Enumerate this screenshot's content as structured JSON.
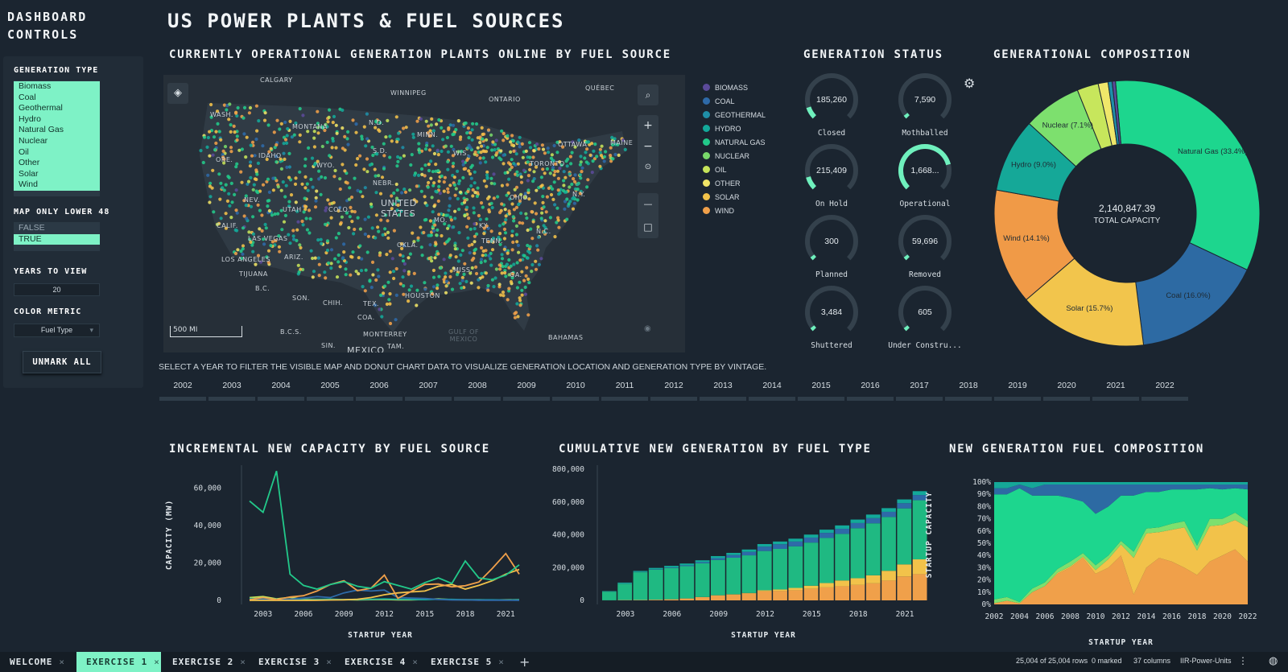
{
  "page_title": "US POWER PLANTS & FUEL SOURCES",
  "sidebar": {
    "title_line1": "DASHBOARD",
    "title_line2": "CONTROLS",
    "generation_type_label": "GENERATION TYPE",
    "generation_types": [
      "Biomass",
      "Coal",
      "Geothermal",
      "Hydro",
      "Natural Gas",
      "Nuclear",
      "Oil",
      "Other",
      "Solar",
      "Wind"
    ],
    "map_only_label": "MAP ONLY LOWER 48",
    "map_only_options": [
      "FALSE",
      "TRUE"
    ],
    "map_only_selected": "TRUE",
    "years_label": "YEARS TO VIEW",
    "years_value": "20",
    "color_metric_label": "COLOR METRIC",
    "color_metric_value": "Fuel Type",
    "unmark_label": "UNMARK ALL"
  },
  "map_panel": {
    "title": "CURRENTLY OPERATIONAL GENERATION PLANTS ONLINE BY FUEL SOURCE",
    "scale_label": "500 MI",
    "labels": [
      "CALGARY",
      "WINNIPEG",
      "QUÉBEC",
      "ONTARIO",
      "MONTANA",
      "N.D.",
      "MINN.",
      "WIS.",
      "OTTAWA",
      "TORONTO",
      "MAINE",
      "WASH.",
      "IDAHO",
      "WYO.",
      "S.D.",
      "ORE.",
      "NEBR.",
      "UNITED STATES",
      "OHIO",
      "N.Y.",
      "NEV.",
      "UTAH",
      "COLO.",
      "MO.",
      "KY.",
      "CALIF.",
      "LAS VEGAS",
      "LOS ANGELES",
      "ARIZ.",
      "OKLA.",
      "TENN.",
      "N.C.",
      "MISS.",
      "GA.",
      "TIJUANA",
      "B.C.",
      "SON.",
      "CHIH.",
      "TEX.",
      "COA.",
      "B.C.S.",
      "HOUSTON",
      "MONTERREY",
      "GULF OF MEXICO",
      "BAHAMAS",
      "SIN.",
      "MEXICO",
      "TAM."
    ]
  },
  "legend": [
    {
      "name": "BIOMASS",
      "color": "#5b4a9a"
    },
    {
      "name": "COAL",
      "color": "#2e6aa8"
    },
    {
      "name": "GEOTHERMAL",
      "color": "#1f8fa8"
    },
    {
      "name": "HYDRO",
      "color": "#13a99a"
    },
    {
      "name": "NATURAL GAS",
      "color": "#22c98a"
    },
    {
      "name": "NUCLEAR",
      "color": "#78d86a"
    },
    {
      "name": "OIL",
      "color": "#c6e45a"
    },
    {
      "name": "OTHER",
      "color": "#f0e467"
    },
    {
      "name": "SOLAR",
      "color": "#f2c24a"
    },
    {
      "name": "WIND",
      "color": "#f0a04a"
    }
  ],
  "generation_status": {
    "title": "GENERATION STATUS",
    "gauges": [
      {
        "value": "185,260",
        "label": "Closed",
        "fraction": 0.1
      },
      {
        "value": "7,590",
        "label": "Mothballed",
        "fraction": 0.005
      },
      {
        "value": "215,409",
        "label": "On Hold",
        "fraction": 0.11
      },
      {
        "value": "1,668...",
        "label": "Operational",
        "fraction": 0.78
      },
      {
        "value": "300",
        "label": "Planned",
        "fraction": 0.005
      },
      {
        "value": "59,696",
        "label": "Removed",
        "fraction": 0.03
      },
      {
        "value": "3,484",
        "label": "Shuttered",
        "fraction": 0.005
      },
      {
        "value": "605",
        "label": "Under Constru...",
        "fraction": 0.005
      }
    ]
  },
  "composition": {
    "title": "GENERATIONAL COMPOSITION",
    "total_value": "2,140,847.39",
    "total_label": "TOTAL CAPACITY",
    "slices": [
      {
        "name": "Natural Gas",
        "label": "Natural Gas (33.4%)",
        "value": 33.4,
        "color": "#1dd68e"
      },
      {
        "name": "Coal",
        "label": "Coal (16.0%)",
        "value": 16.0,
        "color": "#2d6aa3"
      },
      {
        "name": "Solar",
        "label": "Solar (15.7%)",
        "value": 15.7,
        "color": "#f2c54c"
      },
      {
        "name": "Wind",
        "label": "Wind (14.1%)",
        "value": 14.1,
        "color": "#f09a47"
      },
      {
        "name": "Hydro",
        "label": "Hydro (9.0%)",
        "value": 9.0,
        "color": "#15a898"
      },
      {
        "name": "Nuclear",
        "label": "Nuclear (7.1%)",
        "value": 7.1,
        "color": "#7de06e"
      },
      {
        "name": "Oil",
        "label": "",
        "value": 2.6,
        "color": "#c7e65c"
      },
      {
        "name": "Other",
        "label": "",
        "value": 1.2,
        "color": "#efe76a"
      },
      {
        "name": "Geothermal",
        "label": "",
        "value": 0.5,
        "color": "#1f8fa8"
      },
      {
        "name": "Biomass",
        "label": "",
        "value": 0.4,
        "color": "#5b4a9a"
      }
    ]
  },
  "year_filter": {
    "instruction": "SELECT A YEAR TO FILTER THE VISIBLE MAP AND DONUT CHART DATA TO VISUALIZE GENERATION LOCATION AND GENERATION TYPE BY VINTAGE.",
    "years": [
      "2002",
      "2003",
      "2004",
      "2005",
      "2006",
      "2007",
      "2008",
      "2009",
      "2010",
      "2011",
      "2012",
      "2013",
      "2014",
      "2015",
      "2016",
      "2017",
      "2018",
      "2019",
      "2020",
      "2021",
      "2022"
    ]
  },
  "chart_data": [
    {
      "type": "line",
      "title": "INCREMENTAL NEW CAPACITY BY FUEL SOURCE",
      "xlabel": "STARTUP YEAR",
      "ylabel": "CAPACITY (MW)",
      "x": [
        2002,
        2003,
        2004,
        2005,
        2006,
        2007,
        2008,
        2009,
        2010,
        2011,
        2012,
        2013,
        2014,
        2015,
        2016,
        2017,
        2018,
        2019,
        2020,
        2021,
        2022
      ],
      "xticks": [
        "2003",
        "2006",
        "2009",
        "2012",
        "2015",
        "2018",
        "2021"
      ],
      "yticks": [
        "0",
        "20,000",
        "40,000",
        "60,000"
      ],
      "ylim": [
        0,
        70000
      ],
      "series": [
        {
          "name": "Natural Gas",
          "color": "#22c98a",
          "values": [
            53000,
            47000,
            69000,
            14000,
            8000,
            6000,
            8500,
            10000,
            7500,
            6500,
            10000,
            8000,
            6000,
            9500,
            12000,
            9000,
            21000,
            12000,
            11000,
            13500,
            19000
          ]
        },
        {
          "name": "Wind",
          "color": "#f0a04a",
          "values": [
            400,
            1500,
            400,
            1800,
            2500,
            5000,
            8500,
            10500,
            5200,
            6500,
            13500,
            1100,
            4800,
            8500,
            8700,
            7200,
            7800,
            9800,
            17000,
            25000,
            14000
          ]
        },
        {
          "name": "Solar",
          "color": "#f2c24a",
          "values": [
            0,
            0,
            0,
            0,
            0,
            100,
            200,
            300,
            600,
            1500,
            3000,
            4000,
            4500,
            5000,
            7500,
            8500,
            6000,
            8000,
            10500,
            14000,
            16500
          ]
        },
        {
          "name": "Coal",
          "color": "#2e6aa8",
          "values": [
            500,
            600,
            400,
            600,
            1200,
            2000,
            1500,
            4000,
            5500,
            5000,
            5500,
            1500,
            1200,
            1000,
            500,
            200,
            300,
            100,
            100,
            100,
            0
          ]
        },
        {
          "name": "Hydro",
          "color": "#13a99a",
          "values": [
            1000,
            800,
            600,
            400,
            300,
            500,
            700,
            400,
            500,
            600,
            800,
            600,
            500,
            400,
            600,
            500,
            400,
            300,
            300,
            200,
            300
          ]
        },
        {
          "name": "Oil",
          "color": "#c6e45a",
          "values": [
            1500,
            2000,
            800,
            1600,
            600,
            500,
            400,
            400,
            300,
            400,
            500,
            300,
            300,
            500,
            800,
            400,
            300,
            300,
            200,
            300,
            400
          ]
        }
      ]
    },
    {
      "type": "bar",
      "title": "CUMULATIVE NEW GENERATION BY FUEL TYPE",
      "xlabel": "STARTUP YEAR",
      "ylabel": "STARTUP CAPACITY",
      "categories": [
        "2002",
        "2003",
        "2004",
        "2005",
        "2006",
        "2007",
        "2008",
        "2009",
        "2010",
        "2011",
        "2012",
        "2013",
        "2014",
        "2015",
        "2016",
        "2017",
        "2018",
        "2019",
        "2020",
        "2021",
        "2022"
      ],
      "xticks": [
        "2003",
        "2006",
        "2009",
        "2012",
        "2015",
        "2018",
        "2021"
      ],
      "yticks": [
        "0",
        "200,000",
        "400,000",
        "600,000",
        "800,000"
      ],
      "ylim": [
        0,
        800000
      ],
      "series": [
        {
          "name": "Wind",
          "color": "#f0a04a",
          "values": [
            500,
            2000,
            2400,
            4200,
            6700,
            11700,
            20200,
            30700,
            35900,
            42400,
            55900,
            57000,
            61800,
            70300,
            79000,
            86200,
            94000,
            103800,
            120800,
            145800,
            160000
          ]
        },
        {
          "name": "Solar",
          "color": "#f2c24a",
          "values": [
            0,
            0,
            0,
            0,
            0,
            100,
            300,
            600,
            1200,
            2700,
            5700,
            9700,
            14200,
            19200,
            26700,
            35200,
            41200,
            49200,
            59700,
            73700,
            90200
          ]
        },
        {
          "name": "Natural Gas",
          "color": "#1fb982",
          "values": [
            53000,
            100000,
            169000,
            183000,
            191000,
            197000,
            205500,
            215500,
            223000,
            229500,
            239500,
            247500,
            253500,
            263000,
            275000,
            284000,
            305000,
            317000,
            328000,
            341500,
            360500
          ]
        },
        {
          "name": "Coal",
          "color": "#2e6aa8",
          "values": [
            500,
            1100,
            1500,
            2100,
            3300,
            5300,
            6800,
            10800,
            16300,
            21300,
            26800,
            28300,
            29500,
            30500,
            31000,
            31200,
            31500,
            31600,
            31700,
            31800,
            31800
          ]
        },
        {
          "name": "Other",
          "color": "#13a99a",
          "values": [
            2500,
            5300,
            6700,
            8700,
            9600,
            10600,
            11700,
            12500,
            13300,
            14300,
            15600,
            16500,
            17300,
            18200,
            19600,
            20500,
            21200,
            21800,
            22300,
            22800,
            23500
          ]
        }
      ]
    },
    {
      "type": "area",
      "title": "NEW GENERATION FUEL COMPOSITION",
      "xlabel": "STARTUP YEAR",
      "ylabel": "",
      "x": [
        2002,
        2003,
        2004,
        2005,
        2006,
        2007,
        2008,
        2009,
        2010,
        2011,
        2012,
        2013,
        2014,
        2015,
        2016,
        2017,
        2018,
        2019,
        2020,
        2021,
        2022
      ],
      "xticks": [
        "2002",
        "2004",
        "2006",
        "2008",
        "2010",
        "2012",
        "2014",
        "2016",
        "2018",
        "2020",
        "2022"
      ],
      "yticks": [
        "0%",
        "10%",
        "20%",
        "30%",
        "40%",
        "50%",
        "60%",
        "70%",
        "80%",
        "90%",
        "100%"
      ],
      "ylim": [
        0,
        100
      ],
      "series": [
        {
          "name": "Wind",
          "color": "#f0a04a",
          "values": [
            1,
            3,
            1,
            10,
            15,
            25,
            30,
            38,
            25,
            30,
            40,
            8,
            30,
            38,
            35,
            30,
            24,
            35,
            40,
            45,
            35
          ]
        },
        {
          "name": "Solar",
          "color": "#f2c24a",
          "values": [
            0,
            0,
            0,
            0,
            0,
            1,
            1,
            1,
            3,
            7,
            9,
            30,
            28,
            21,
            26,
            33,
            20,
            29,
            25,
            24,
            28
          ]
        },
        {
          "name": "Nuclear",
          "color": "#7de06e",
          "values": [
            3,
            3,
            1,
            3,
            3,
            3,
            4,
            3,
            4,
            3,
            3,
            5,
            4,
            4,
            5,
            5,
            4,
            6,
            5,
            6,
            5
          ]
        },
        {
          "name": "Natural Gas",
          "color": "#1dd68e",
          "values": [
            86,
            84,
            93,
            76,
            71,
            60,
            52,
            42,
            42,
            40,
            37,
            46,
            30,
            29,
            28,
            26,
            46,
            25,
            24,
            20,
            26
          ]
        },
        {
          "name": "Coal",
          "color": "#2d6aa3",
          "values": [
            5,
            5,
            3,
            6,
            9,
            9,
            11,
            14,
            24,
            18,
            9,
            9,
            6,
            6,
            4,
            4,
            4,
            3,
            4,
            3,
            4
          ]
        },
        {
          "name": "Hydro",
          "color": "#15a898",
          "values": [
            5,
            5,
            2,
            5,
            2,
            2,
            2,
            2,
            2,
            2,
            2,
            2,
            2,
            2,
            2,
            2,
            2,
            2,
            2,
            2,
            2
          ]
        }
      ]
    }
  ],
  "tabs": [
    {
      "label": "WELCOME",
      "active": false
    },
    {
      "label": "EXERCISE 1",
      "active": true
    },
    {
      "label": "EXERCISE 2",
      "active": false
    },
    {
      "label": "EXERCISE 3",
      "active": false
    },
    {
      "label": "EXERCISE 4",
      "active": false
    },
    {
      "label": "EXERCISE 5",
      "active": false
    }
  ],
  "status_bar": {
    "rows": "25,004 of 25,004 rows",
    "marked": "0 marked",
    "columns": "37 columns",
    "table": "IIR-Power-Units"
  }
}
